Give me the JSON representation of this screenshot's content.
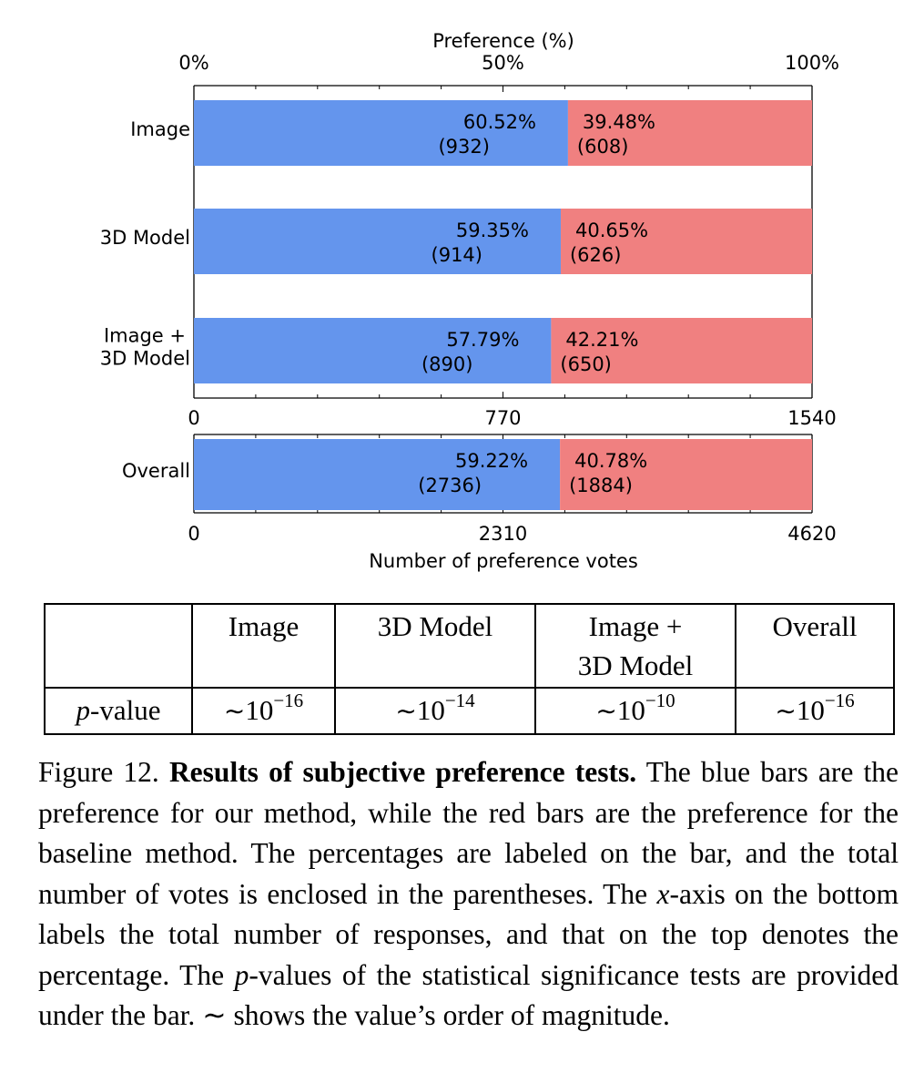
{
  "chart_data": {
    "type": "bar",
    "orientation": "horizontal",
    "stacked": true,
    "colors": {
      "ours": "#6495ED",
      "baseline": "#F08080"
    },
    "top_axis": {
      "label": "Preference (%)",
      "ticks": [
        "0%",
        "50%",
        "100%"
      ],
      "range": [
        0,
        100
      ]
    },
    "groups": [
      {
        "categories": [
          "Image",
          "3D Model",
          "Image +\n3D Model"
        ],
        "bars": [
          {
            "ours_pct": "60.52%",
            "ours_count": "(932)",
            "base_pct": "39.48%",
            "base_count": "(608)",
            "ours_value": 932,
            "base_value": 608
          },
          {
            "ours_pct": "59.35%",
            "ours_count": "(914)",
            "base_pct": "40.65%",
            "base_count": "(626)",
            "ours_value": 914,
            "base_value": 626
          },
          {
            "ours_pct": "57.79%",
            "ours_count": "(890)",
            "base_pct": "42.21%",
            "base_count": "(650)",
            "ours_value": 890,
            "base_value": 650
          }
        ],
        "axis": {
          "ticks": [
            "0",
            "770",
            "1540"
          ],
          "range": [
            0,
            1540
          ]
        }
      },
      {
        "categories": [
          "Overall"
        ],
        "bars": [
          {
            "ours_pct": "59.22%",
            "ours_count": "(2736)",
            "base_pct": "40.78%",
            "base_count": "(1884)",
            "ours_value": 2736,
            "base_value": 1884
          }
        ],
        "axis": {
          "ticks": [
            "0",
            "2310",
            "4620"
          ],
          "range": [
            0,
            4620
          ],
          "label": "Number of preference votes"
        }
      }
    ]
  },
  "table": {
    "headers": [
      "Image",
      "3D Model",
      "Image +",
      "3D Model",
      "Overall"
    ],
    "row_label_var": "p",
    "row_label_rest": "-value",
    "tilde": "∼",
    "cells": [
      {
        "base": "10",
        "exp": "−16"
      },
      {
        "base": "10",
        "exp": "−14"
      },
      {
        "base": "10",
        "exp": "−10"
      },
      {
        "base": "10",
        "exp": "−16"
      }
    ]
  },
  "caption": {
    "lead": "Figure 12. ",
    "bold": "Results of subjective preference tests.",
    "t1": " The blue bars are the preference for our method, while the red bars are the preference for the baseline method. The percentages are labeled on the bar, and the total number of votes is enclosed in the parentheses. The ",
    "x_var": "x",
    "t2": "-axis on the bottom labels the total number of responses, and that on the top denotes the percentage. The ",
    "p_var": "p",
    "t3": "-values of the statistical significance tests are provided under the bar. ",
    "tilde": "∼",
    "t4": " shows the value’s order of magnitude."
  }
}
